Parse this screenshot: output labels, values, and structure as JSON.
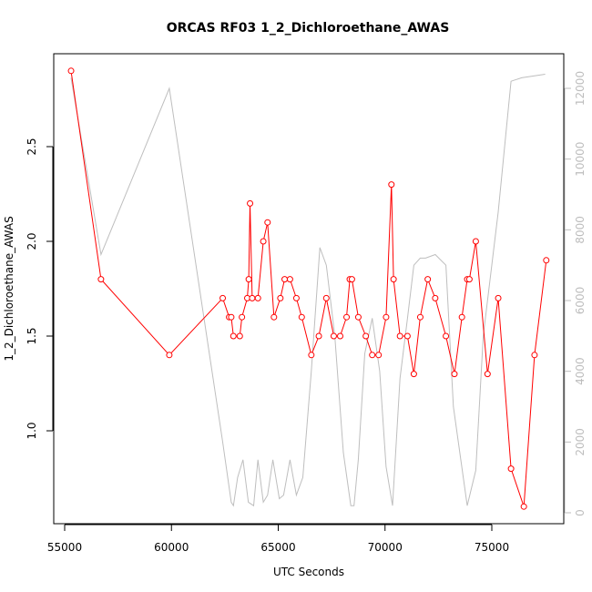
{
  "chart_data": {
    "type": "line",
    "title": "ORCAS RF03 1_2_Dichloroethane_AWAS",
    "xlabel": "UTC Seconds",
    "ylabel": "1_2_Dichloroethane_AWAS",
    "xlim": [
      54000,
      78000
    ],
    "ylim": [
      0.6,
      3.0
    ],
    "y2lim": [
      -200,
      12500
    ],
    "x_ticks": [
      55000,
      60000,
      65000,
      70000,
      75000
    ],
    "y_ticks": [
      1.0,
      1.5,
      2.0,
      2.5
    ],
    "y2_ticks": [
      0,
      2000,
      4000,
      6000,
      8000,
      10000,
      12000
    ],
    "colors": {
      "primary": "#ff0000",
      "secondary": "#bebebe",
      "axis": "#000000",
      "axis_right": "#bdbdbd"
    },
    "series": [
      {
        "axis": "left",
        "style": "line+circle",
        "x": [
          55300,
          56700,
          59900,
          62400,
          62700,
          62800,
          62900,
          63200,
          63300,
          63550,
          63620,
          63680,
          63780,
          64050,
          64300,
          64500,
          64800,
          65100,
          65300,
          65550,
          65850,
          66100,
          66550,
          66900,
          67250,
          67600,
          67900,
          68200,
          68350,
          68450,
          68750,
          69100,
          69400,
          69700,
          70050,
          70300,
          70400,
          70700,
          71050,
          71350,
          71650,
          72000,
          72350,
          72850,
          73250,
          73600,
          73850,
          73950,
          74250,
          74800,
          75300,
          75900,
          76500,
          77000,
          77550
        ],
        "y": [
          2.9,
          1.8,
          1.4,
          1.7,
          1.6,
          1.6,
          1.5,
          1.5,
          1.6,
          1.7,
          1.8,
          2.2,
          1.7,
          1.7,
          2.0,
          2.1,
          1.6,
          1.7,
          1.8,
          1.8,
          1.7,
          1.6,
          1.4,
          1.5,
          1.7,
          1.5,
          1.5,
          1.6,
          1.8,
          1.8,
          1.6,
          1.5,
          1.4,
          1.4,
          1.6,
          2.3,
          1.8,
          1.5,
          1.5,
          1.3,
          1.6,
          1.8,
          1.7,
          1.5,
          1.3,
          1.6,
          1.8,
          1.8,
          2.0,
          1.3,
          1.7,
          0.8,
          0.6,
          1.4,
          1.9
        ]
      },
      {
        "axis": "right",
        "style": "line",
        "x": [
          55300,
          56700,
          59900,
          62400,
          62800,
          62900,
          63100,
          63350,
          63600,
          63850,
          64050,
          64300,
          64500,
          64750,
          65050,
          65250,
          65550,
          65850,
          66150,
          66550,
          66950,
          67250,
          67650,
          68050,
          68400,
          68550,
          68750,
          69050,
          69400,
          69750,
          70050,
          70350,
          70700,
          71050,
          71350,
          71650,
          71900,
          72350,
          72850,
          73200,
          73850,
          74250,
          74600,
          75300,
          75900,
          76400,
          77500
        ],
        "y": [
          12300,
          7300,
          12000,
          2000,
          300,
          200,
          1000,
          1500,
          300,
          200,
          1500,
          300,
          500,
          1500,
          400,
          500,
          1500,
          500,
          1000,
          4000,
          7500,
          7000,
          5000,
          1700,
          200,
          200,
          1500,
          4500,
          5500,
          4000,
          1300,
          200,
          3800,
          5500,
          7000,
          7200,
          7200,
          7300,
          7000,
          3000,
          200,
          1200,
          5000,
          8500,
          12200,
          12300,
          12400
        ]
      }
    ]
  }
}
